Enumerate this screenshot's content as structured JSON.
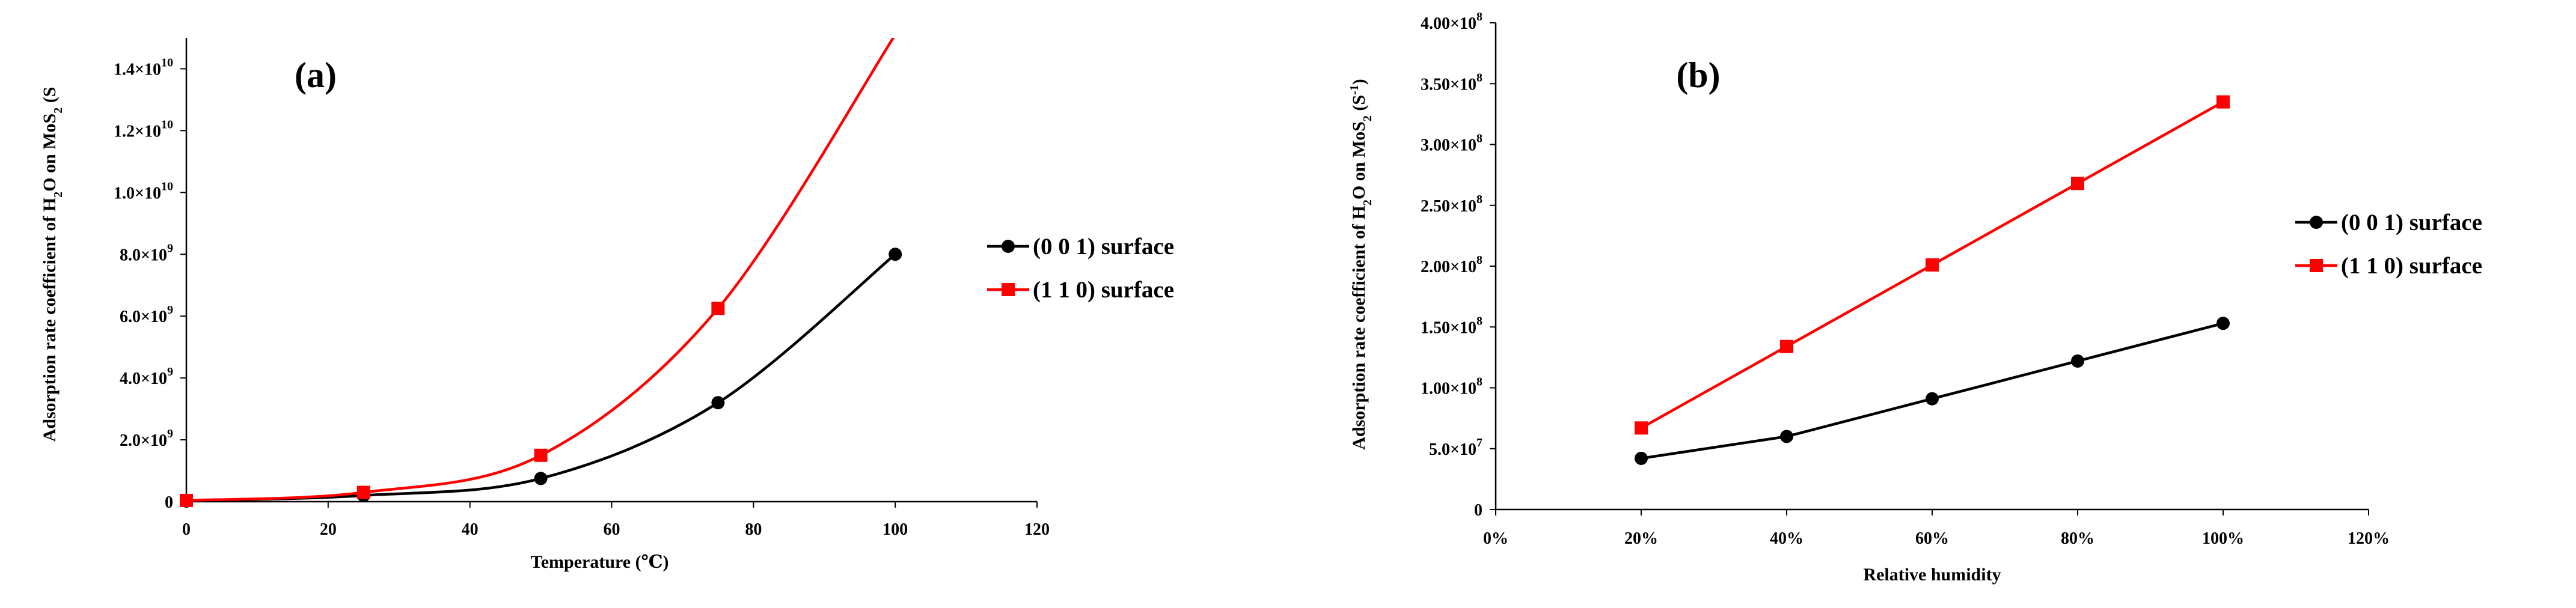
{
  "chart_data": [
    {
      "type": "line",
      "panel_label": "(a)",
      "xlabel": "Temperature (℃)",
      "ylabel_html": "Adsorption rate coefficient of H<tspan baseline-shift='sub' font-size='20'>2</tspan>O on MoS<tspan baseline-shift='sub' font-size='20'>2</tspan> (S",
      "ylabel_text": "Adsorption rate coefficient of H2O on MoS2 (S",
      "xlim": [
        0,
        120
      ],
      "ylim": [
        0,
        15000000000
      ],
      "x_ticks": [
        0,
        20,
        40,
        60,
        80,
        100,
        120
      ],
      "x_tick_labels": [
        "0",
        "20",
        "40",
        "60",
        "80",
        "100",
        "120"
      ],
      "y_ticks": [
        0,
        2000000000,
        4000000000,
        6000000000,
        8000000000,
        10000000000,
        12000000000,
        14000000000
      ],
      "y_tick_labels": [
        {
          "m": "0",
          "e": ""
        },
        {
          "m": "2.0×10",
          "e": "9"
        },
        {
          "m": "4.0×10",
          "e": "9"
        },
        {
          "m": "6.0×10",
          "e": "9"
        },
        {
          "m": "8.0×10",
          "e": "9"
        },
        {
          "m": "1.0×10",
          "e": "10"
        },
        {
          "m": "1.2×10",
          "e": "10"
        },
        {
          "m": "1.4×10",
          "e": "10"
        }
      ],
      "smooth": true,
      "series": [
        {
          "name": "(0 0 1) surface",
          "color": "#000000",
          "marker": "circle",
          "x": [
            0,
            25,
            50,
            75,
            100
          ],
          "y": [
            20000000,
            200000000,
            750000000,
            3200000000,
            8000000000
          ]
        },
        {
          "name": "(1 1 0) surface",
          "color": "#ff0000",
          "marker": "square",
          "x": [
            0,
            25,
            50,
            75,
            100
          ],
          "y": [
            40000000,
            300000000,
            1500000000,
            6250000000,
            15100000000
          ]
        }
      ]
    },
    {
      "type": "line",
      "panel_label": "(b)",
      "xlabel": "Relative humidity",
      "ylabel_html": "Adsorption rate coefficient of H<tspan baseline-shift='sub' font-size='20'>2</tspan>O on MoS<tspan baseline-shift='sub' font-size='20'>2</tspan> (S<tspan baseline-shift='super' font-size='20'>-1</tspan>)",
      "ylabel_text": "Adsorption rate coefficient of H2O on MoS2 (S-1)",
      "xlim": [
        0,
        120
      ],
      "ylim": [
        0,
        400000000
      ],
      "x_ticks": [
        0,
        20,
        40,
        60,
        80,
        100,
        120
      ],
      "x_tick_labels": [
        "0%",
        "20%",
        "40%",
        "60%",
        "80%",
        "100%",
        "120%"
      ],
      "y_ticks": [
        0,
        50000000,
        100000000,
        150000000,
        200000000,
        250000000,
        300000000,
        350000000,
        400000000
      ],
      "y_tick_labels": [
        {
          "m": "0",
          "e": ""
        },
        {
          "m": "5.0×10",
          "e": "7"
        },
        {
          "m": "1.00×10",
          "e": "8"
        },
        {
          "m": "1.50×10",
          "e": "8"
        },
        {
          "m": "2.00×10",
          "e": "8"
        },
        {
          "m": "2.50×10",
          "e": "8"
        },
        {
          "m": "3.00×10",
          "e": "8"
        },
        {
          "m": "3.50×10",
          "e": "8"
        },
        {
          "m": "4.00×10",
          "e": "8"
        }
      ],
      "smooth": false,
      "series": [
        {
          "name": "(0 0 1) surface",
          "color": "#000000",
          "marker": "circle",
          "x": [
            20,
            40,
            60,
            80,
            100
          ],
          "y": [
            42000000,
            60000000,
            91000000,
            122000000,
            153000000
          ]
        },
        {
          "name": "(1 1 0) surface",
          "color": "#ff0000",
          "marker": "square",
          "x": [
            20,
            40,
            60,
            80,
            100
          ],
          "y": [
            67000000,
            134000000,
            201000000,
            268000000,
            335000000
          ]
        }
      ]
    }
  ]
}
